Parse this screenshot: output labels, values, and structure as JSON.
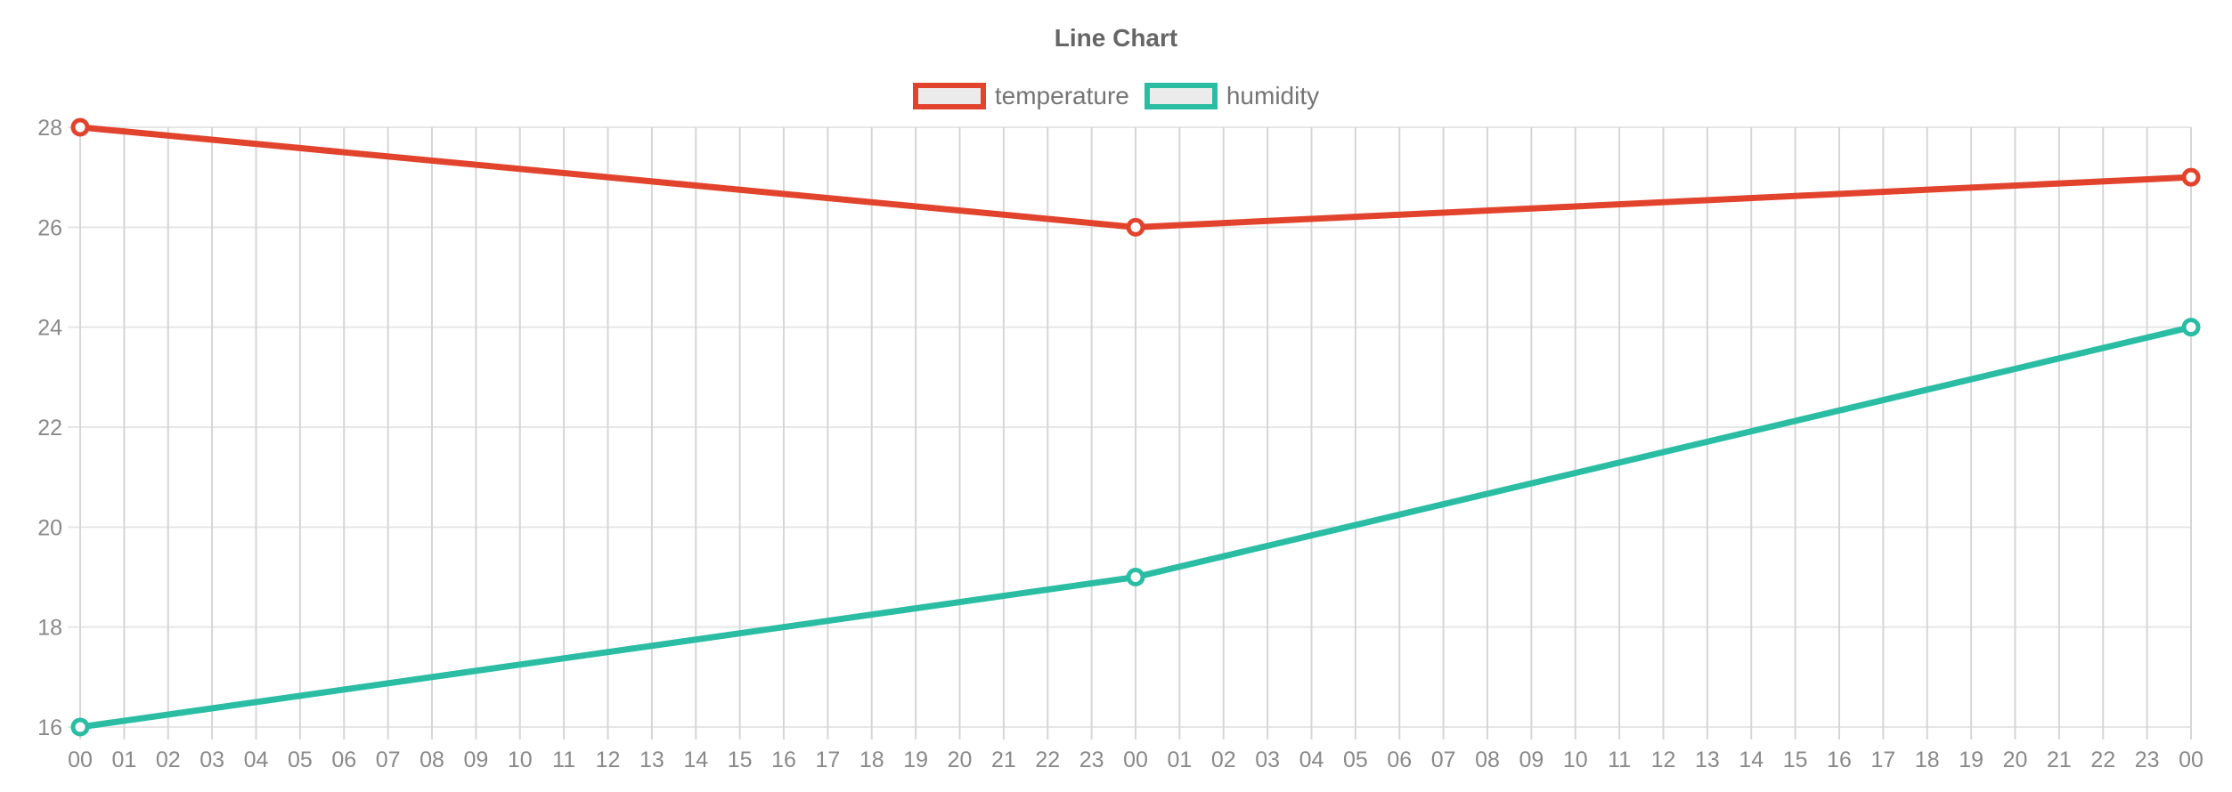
{
  "chart_data": {
    "type": "line",
    "title": "Line Chart",
    "xlabel": "",
    "ylabel": "",
    "legend_position": "top",
    "grid": true,
    "ylim": [
      16,
      28
    ],
    "yticks": [
      16,
      18,
      20,
      22,
      24,
      26,
      28
    ],
    "x_categories": [
      "00",
      "01",
      "02",
      "03",
      "04",
      "05",
      "06",
      "07",
      "08",
      "09",
      "10",
      "11",
      "12",
      "13",
      "14",
      "15",
      "16",
      "17",
      "18",
      "19",
      "20",
      "21",
      "22",
      "23",
      "00",
      "01",
      "02",
      "03",
      "04",
      "05",
      "06",
      "07",
      "08",
      "09",
      "10",
      "11",
      "12",
      "13",
      "14",
      "15",
      "16",
      "17",
      "18",
      "19",
      "20",
      "21",
      "22",
      "23",
      "00"
    ],
    "series": [
      {
        "name": "temperature",
        "color": "#e2432d",
        "points": [
          [
            0,
            28
          ],
          [
            24,
            26
          ],
          [
            48,
            27
          ]
        ]
      },
      {
        "name": "humidity",
        "color": "#2abda4",
        "points": [
          [
            0,
            16
          ],
          [
            24,
            19
          ],
          [
            48,
            24
          ]
        ]
      }
    ]
  },
  "colors": {
    "title_text": "#666666",
    "legend_text": "#757575",
    "axis_text": "#898989",
    "grid_vertical": "#d6d6d6",
    "grid_horizontal": "#e6e6e6",
    "legend_swatch_fill": "#ebebeb",
    "marker_fill": "#ffffff"
  }
}
